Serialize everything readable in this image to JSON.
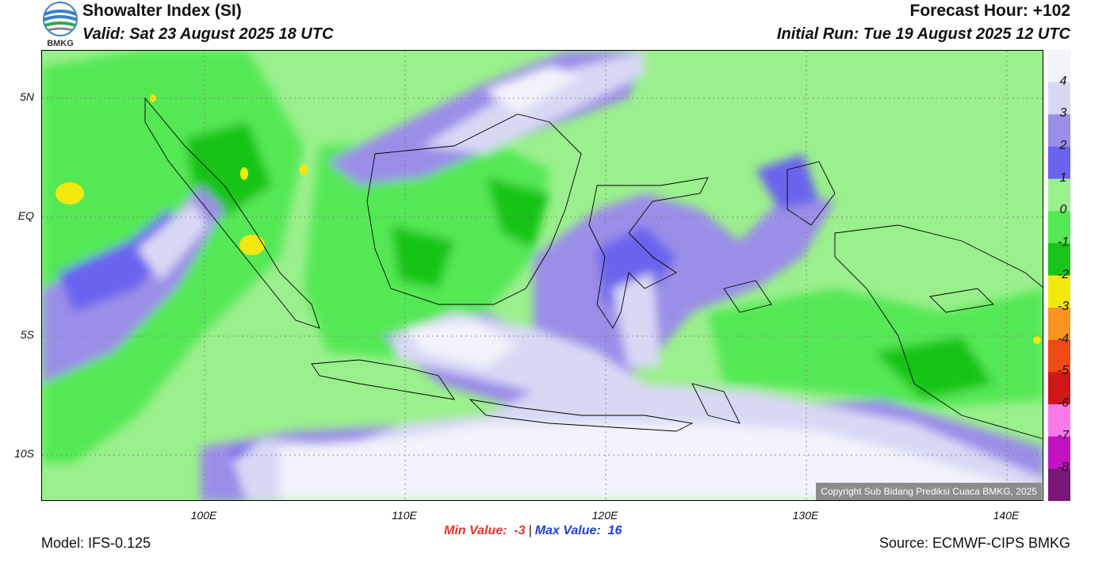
{
  "header": {
    "logo_text": "BMKG",
    "title": "Showalter Index (SI)",
    "valid": "Valid: Sat 23 August 2025 18 UTC",
    "forecast_hour": "Forecast Hour: +102",
    "initial_run": "Initial Run: Tue 19 August 2025 12 UTC"
  },
  "map": {
    "lat_labels": [
      "5N",
      "EQ",
      "5S",
      "10S"
    ],
    "lon_labels": [
      "100E",
      "110E",
      "120E",
      "130E",
      "140E"
    ],
    "copyright": "Copyright Sub Bidang Prediksi Cuaca BMKG, 2025"
  },
  "colorbar": {
    "labels": [
      "4",
      "3",
      "2",
      "1",
      "0",
      "-1",
      "-2",
      "-3",
      "-4",
      "-5",
      "-6",
      "-7",
      "-8"
    ],
    "colors": [
      "#f3f3fb",
      "#d8d8f5",
      "#9b8ee8",
      "#6a63ee",
      "#9af08c",
      "#55e855",
      "#19c419",
      "#f2e80c",
      "#f8951e",
      "#f04a16",
      "#d01818",
      "#f77ae8",
      "#c212c2",
      "#7a1678"
    ]
  },
  "stats": {
    "min_label": "Min Value:",
    "min_value": "-3",
    "max_label": "Max Value:",
    "max_value": "16"
  },
  "footer": {
    "model": "Model: IFS-0.125",
    "source": "Source: ECMWF-CIPS BMKG"
  }
}
